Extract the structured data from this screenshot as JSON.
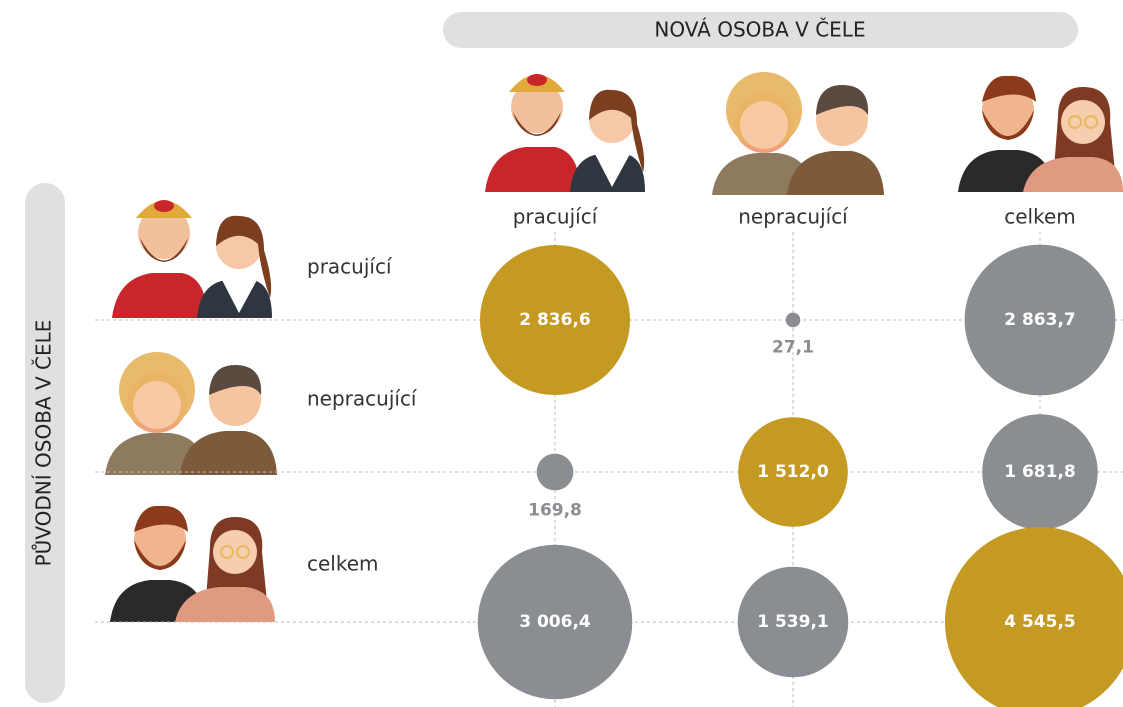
{
  "chart_data": {
    "type": "bubble-matrix",
    "title": "NOVÁ OSOBA V ČELE",
    "y_label": "PŮVODNÍ OSOBA V ČELE",
    "columns": [
      "pracující",
      "nepracující",
      "celkem"
    ],
    "rows": [
      "pracující",
      "nepracující",
      "celkem"
    ],
    "values": [
      [
        2836.6,
        27.1,
        2863.7
      ],
      [
        169.8,
        1512.0,
        1681.8
      ],
      [
        3006.4,
        1539.1,
        4545.5
      ]
    ],
    "value_labels": [
      [
        "2 836,6",
        "27,1",
        "2 863,7"
      ],
      [
        "169,8",
        "1 512,0",
        "1 681,8"
      ],
      [
        "3 006,4",
        "1 539,1",
        "4 545,5"
      ]
    ],
    "color": "#8a8d91",
    "highlight_color": "#c49a22"
  }
}
